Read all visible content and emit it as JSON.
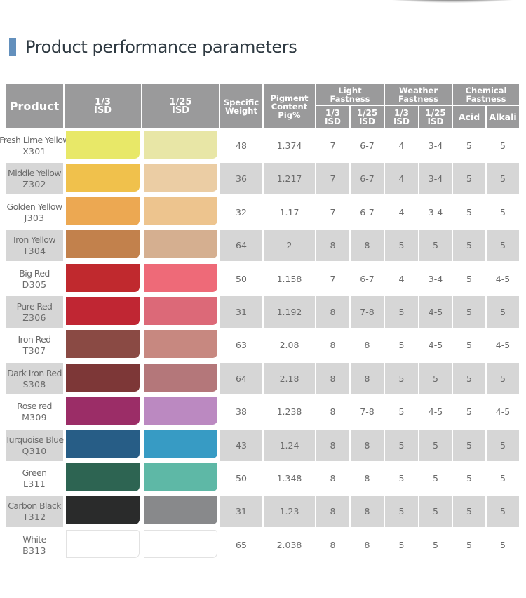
{
  "title": "Product performance parameters",
  "accent_color": "#6390bd",
  "header": {
    "product": "Product",
    "isd_1_3": "1/3\nISD",
    "isd_1_25": "1/25\nISD",
    "specific_weight": "Specific\nWeight",
    "pigment_content": "Pigment\nContent\nPig%",
    "light_fastness": "Light\nFastness",
    "weather_fastness": "Weather\nFastness",
    "chemical_fastness": "Chemical\nFastness",
    "sub_1_3": "1/3\nISD",
    "sub_1_25": "1/25\nISD",
    "acid": "Acid",
    "alkali": "Alkali"
  },
  "rows": [
    {
      "name": "Fresh Lime Yellow",
      "code": "X301",
      "swatch_1_3": "#e8e868",
      "swatch_1_25": "#e8e6a6",
      "specific_weight": "48",
      "pigment": "1.374",
      "lf_1_3": "7",
      "lf_1_25": "6-7",
      "wf_1_3": "4",
      "wf_1_25": "3-4",
      "acid": "5",
      "alkali": "5"
    },
    {
      "name": "Middle Yellow",
      "code": "Z302",
      "swatch_1_3": "#f0c14c",
      "swatch_1_25": "#ebcda4",
      "specific_weight": "36",
      "pigment": "1.217",
      "lf_1_3": "7",
      "lf_1_25": "6-7",
      "wf_1_3": "4",
      "wf_1_25": "3-4",
      "acid": "5",
      "alkali": "5"
    },
    {
      "name": "Golden Yellow",
      "code": "J303",
      "swatch_1_3": "#eca852",
      "swatch_1_25": "#edc48e",
      "specific_weight": "32",
      "pigment": "1.17",
      "lf_1_3": "7",
      "lf_1_25": "6-7",
      "wf_1_3": "4",
      "wf_1_25": "3-4",
      "acid": "5",
      "alkali": "5"
    },
    {
      "name": "Iron Yellow",
      "code": "T304",
      "swatch_1_3": "#c2814c",
      "swatch_1_25": "#d5af90",
      "specific_weight": "64",
      "pigment": "2",
      "lf_1_3": "8",
      "lf_1_25": "8",
      "wf_1_3": "5",
      "wf_1_25": "5",
      "acid": "5",
      "alkali": "5"
    },
    {
      "name": "Big Red",
      "code": "D305",
      "swatch_1_3": "#c0292e",
      "swatch_1_25": "#ee6a78",
      "specific_weight": "50",
      "pigment": "1.158",
      "lf_1_3": "7",
      "lf_1_25": "6-7",
      "wf_1_3": "4",
      "wf_1_25": "3-4",
      "acid": "5",
      "alkali": "4-5"
    },
    {
      "name": "Pure Red",
      "code": "Z306",
      "swatch_1_3": "#c02633",
      "swatch_1_25": "#dc6978",
      "specific_weight": "31",
      "pigment": "1.192",
      "lf_1_3": "8",
      "lf_1_25": "7-8",
      "wf_1_3": "5",
      "wf_1_25": "4-5",
      "acid": "5",
      "alkali": "5"
    },
    {
      "name": "Iron Red",
      "code": "T307",
      "swatch_1_3": "#8a4a44",
      "swatch_1_25": "#c78880",
      "specific_weight": "63",
      "pigment": "2.08",
      "lf_1_3": "8",
      "lf_1_25": "8",
      "wf_1_3": "5",
      "wf_1_25": "4-5",
      "acid": "5",
      "alkali": "4-5"
    },
    {
      "name": "Dark Iron Red",
      "code": "S308",
      "swatch_1_3": "#7d3737",
      "swatch_1_25": "#b4777a",
      "specific_weight": "64",
      "pigment": "2.18",
      "lf_1_3": "8",
      "lf_1_25": "8",
      "wf_1_3": "5",
      "wf_1_25": "5",
      "acid": "5",
      "alkali": "5"
    },
    {
      "name": "Rose red",
      "code": "M309",
      "swatch_1_3": "#9b2d67",
      "swatch_1_25": "#bb89c1",
      "specific_weight": "38",
      "pigment": "1.238",
      "lf_1_3": "8",
      "lf_1_25": "7-8",
      "wf_1_3": "5",
      "wf_1_25": "4-5",
      "acid": "5",
      "alkali": "4-5"
    },
    {
      "name": "Turquoise Blue",
      "code": "Q310",
      "swatch_1_3": "#275d86",
      "swatch_1_25": "#379bc4",
      "specific_weight": "43",
      "pigment": "1.24",
      "lf_1_3": "8",
      "lf_1_25": "8",
      "wf_1_3": "5",
      "wf_1_25": "5",
      "acid": "5",
      "alkali": "5"
    },
    {
      "name": "Green",
      "code": "L311",
      "swatch_1_3": "#2d6452",
      "swatch_1_25": "#5eb8a6",
      "specific_weight": "50",
      "pigment": "1.348",
      "lf_1_3": "8",
      "lf_1_25": "8",
      "wf_1_3": "5",
      "wf_1_25": "5",
      "acid": "5",
      "alkali": "5"
    },
    {
      "name": "Carbon Black",
      "code": "T312",
      "swatch_1_3": "#2a2b2b",
      "swatch_1_25": "#88898b",
      "specific_weight": "31",
      "pigment": "1.23",
      "lf_1_3": "8",
      "lf_1_25": "8",
      "wf_1_3": "5",
      "wf_1_25": "5",
      "acid": "5",
      "alkali": "5"
    },
    {
      "name": "White",
      "code": "B313",
      "swatch_1_3": "#ffffff",
      "swatch_1_25": "#ffffff",
      "specific_weight": "65",
      "pigment": "2.038",
      "lf_1_3": "8",
      "lf_1_25": "8",
      "wf_1_3": "5",
      "wf_1_25": "5",
      "acid": "5",
      "alkali": "5"
    }
  ]
}
